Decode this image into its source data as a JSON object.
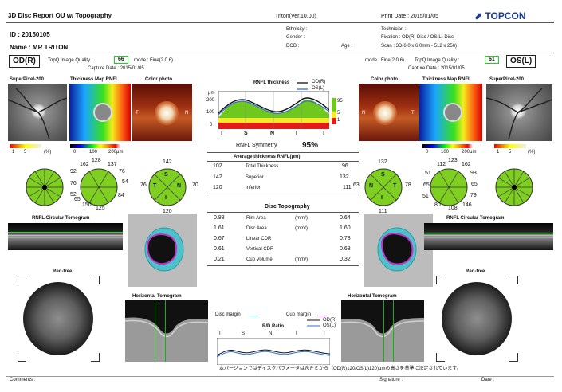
{
  "header": {
    "title": "3D Disc Report OU w/ Topography",
    "triton_version": "Triton(Ver.10.00)",
    "print_date": "Print Date : 2015/01/05",
    "brand": "TOPCON",
    "id": "ID : 20150105",
    "name": "Name : MR   TRITON",
    "ethnicity": "Ethnicity :",
    "gender": "Gender :",
    "dob": "DOB :",
    "age": "Age :",
    "technician": "Technician :",
    "fixation": "Fixation : OD(R) Disc / OS(L) Disc",
    "scan": "Scan : 3D(6.0 x 6.0mm - 512 x 256)"
  },
  "od": {
    "eye_label": "OD(R)",
    "quality_label": "TopQ Image Quality :",
    "quality_value": "66",
    "mode": "mode : Fine(2.0.6)",
    "capture": "Capture Date : 2015/01/05",
    "labels": {
      "sp": "SuperPixel-200",
      "thick": "Thickness Map RNFL",
      "color": "Color photo",
      "rnfl_tomo": "RNFL Circular Tomogram",
      "red_free": "Red-free",
      "horiz_tomo": "Horizontal Tomogram"
    },
    "sector12": [
      "128",
      "137",
      "76",
      "54",
      "84",
      "125",
      "150",
      "52",
      "76",
      "162",
      "92",
      "65"
    ],
    "quad4": [
      "142",
      "70",
      "120",
      "76"
    ],
    "quad_letters": [
      "S",
      "N",
      "I",
      "T"
    ],
    "legend_pct": [
      "1",
      "5",
      "(%)"
    ],
    "legend_um": [
      "0",
      "100",
      "200μm"
    ]
  },
  "os": {
    "eye_label": "OS(L)",
    "quality_label": "TopQ Image Quality :",
    "quality_value": "61",
    "mode": "mode : Fine(2.0.6)",
    "capture": "Capture Date : 2015/01/05",
    "labels": {
      "color": "Color photo",
      "thick": "Thickness Map RNFL",
      "sp": "SuperPixel-200",
      "rnfl_tomo": "RNFL Circular Tomogram",
      "red_free": "Red-free",
      "horiz_tomo": "Horizontal Tomogram"
    },
    "sector12": [
      "112",
      "123",
      "162",
      "93",
      "65",
      "79",
      "146",
      "108",
      "80",
      "51",
      "65",
      "51"
    ],
    "quad4": [
      "132",
      "78",
      "111",
      "63"
    ],
    "quad_letters": [
      "S",
      "T",
      "I",
      "N"
    ],
    "legend_pct": [
      "1",
      "5",
      "(%)"
    ],
    "legend_um": [
      "0",
      "100",
      "200μm"
    ]
  },
  "rnfl_chart": {
    "title": "RNFL thickness",
    "legend_od": "OD(R)",
    "legend_os": "OS(L)",
    "unit": "μm",
    "yticks": [
      "200",
      "100",
      "0"
    ],
    "xticks": [
      "T",
      "S",
      "N",
      "I",
      "T"
    ],
    "right_scale": [
      "95",
      "5",
      "1"
    ],
    "symmetry_label": "RNFL Symmetry",
    "symmetry_value": "95%"
  },
  "avg_thickness": {
    "title": "Average thickness RNFL(μm)",
    "rows": [
      {
        "od": "102",
        "label": "Total Thickness",
        "os": "96"
      },
      {
        "od": "142",
        "label": "Superior",
        "os": "132"
      },
      {
        "od": "120",
        "label": "Inferior",
        "os": "111"
      }
    ]
  },
  "disc_topography": {
    "title": "Disc Topography",
    "rows": [
      {
        "od": "0.88",
        "label": "Rim Area",
        "unit": "(mm²)",
        "os": "0.64"
      },
      {
        "od": "1.61",
        "label": "Disc Area",
        "unit": "(mm²)",
        "os": "1.60"
      },
      {
        "od": "0.67",
        "label": "Linear CDR",
        "unit": "",
        "os": "0.78"
      },
      {
        "od": "0.61",
        "label": "Vertical CDR",
        "unit": "",
        "os": "0.68"
      },
      {
        "od": "0.21",
        "label": "Cup Volume",
        "unit": "(mm³)",
        "os": "0.32"
      }
    ]
  },
  "rd_ratio": {
    "disc_margin": "Disc margin",
    "cup_margin": "Cup margin",
    "title": "R/D Ratio",
    "legend_od": "OD(R)",
    "legend_os": "OS(L)",
    "xticks": [
      "T",
      "S",
      "N",
      "I",
      "T"
    ]
  },
  "footer": {
    "note": "本バージョンではディスクパラメータはＲＰＥから（OD(R)120/OS(L)120)μmの高さを基準に決定されています。",
    "comments": "Comments :",
    "signature": "Signature :",
    "date": "Date :"
  },
  "colors": {
    "green": "#7ac91f",
    "sector_green": "#7fce22",
    "quality_border": "#22c022",
    "od_line": "#111111",
    "os_line": "#2d6fd6"
  }
}
